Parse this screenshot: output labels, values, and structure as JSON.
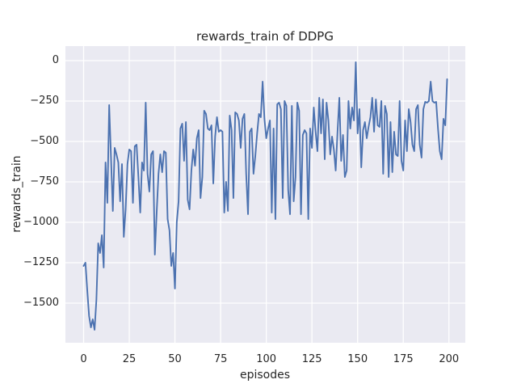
{
  "figure": {
    "title": "rewards_train of DDPG"
  },
  "chart_data": {
    "type": "line",
    "title": "rewards_train of DDPG",
    "xlabel": "episodes",
    "ylabel": "rewards_train",
    "x_ticks": [
      0,
      25,
      50,
      75,
      100,
      125,
      150,
      175,
      200
    ],
    "y_ticks": [
      0,
      -250,
      -500,
      -750,
      -1000,
      -1250,
      -1500
    ],
    "xlim": [
      -9.95,
      208.95
    ],
    "ylim": [
      -1745,
      90
    ],
    "grid": true,
    "legend_visible": false,
    "style": "seaborn-darkgrid",
    "colors": {
      "line": "#4c72b0",
      "axes_bg": "#eaeaf2",
      "grid": "#ffffff",
      "text": "#262626",
      "figure_bg": "#ffffff"
    },
    "series": [
      {
        "name": "rewards_train",
        "x_start": 0,
        "x_step": 1,
        "values": [
          -1270,
          -1250,
          -1420,
          -1580,
          -1650,
          -1600,
          -1665,
          -1480,
          -1130,
          -1190,
          -1080,
          -1280,
          -630,
          -880,
          -275,
          -600,
          -930,
          -540,
          -580,
          -630,
          -870,
          -640,
          -1090,
          -920,
          -640,
          -550,
          -560,
          -880,
          -530,
          -520,
          -720,
          -940,
          -630,
          -680,
          -260,
          -700,
          -810,
          -580,
          -560,
          -1200,
          -940,
          -700,
          -580,
          -690,
          -560,
          -570,
          -980,
          -1050,
          -1270,
          -1190,
          -1410,
          -1000,
          -870,
          -420,
          -390,
          -620,
          -380,
          -860,
          -920,
          -680,
          -550,
          -650,
          -480,
          -430,
          -850,
          -720,
          -310,
          -330,
          -420,
          -430,
          -400,
          -760,
          -470,
          -350,
          -440,
          -430,
          -440,
          -940,
          -750,
          -930,
          -340,
          -430,
          -850,
          -320,
          -330,
          -370,
          -540,
          -360,
          -330,
          -700,
          -950,
          -440,
          -420,
          -700,
          -590,
          -450,
          -330,
          -350,
          -130,
          -360,
          -480,
          -420,
          -370,
          -940,
          -420,
          -980,
          -270,
          -260,
          -300,
          -850,
          -250,
          -280,
          -800,
          -950,
          -280,
          -870,
          -720,
          -260,
          -310,
          -950,
          -460,
          -430,
          -450,
          -980,
          -420,
          -540,
          -290,
          -440,
          -560,
          -230,
          -450,
          -240,
          -610,
          -260,
          -370,
          -580,
          -470,
          -550,
          -680,
          -440,
          -230,
          -620,
          -460,
          -720,
          -680,
          -250,
          -420,
          -290,
          -370,
          -10,
          -450,
          -300,
          -660,
          -430,
          -380,
          -480,
          -410,
          -350,
          -230,
          -440,
          -240,
          -400,
          -410,
          -250,
          -700,
          -280,
          -330,
          -720,
          -380,
          -690,
          -440,
          -580,
          -590,
          -250,
          -620,
          -680,
          -370,
          -560,
          -300,
          -380,
          -520,
          -560,
          -300,
          -275,
          -520,
          -600,
          -300,
          -255,
          -260,
          -250,
          -130,
          -250,
          -260,
          -255,
          -420,
          -560,
          -610,
          -360,
          -400,
          -115
        ]
      }
    ]
  }
}
